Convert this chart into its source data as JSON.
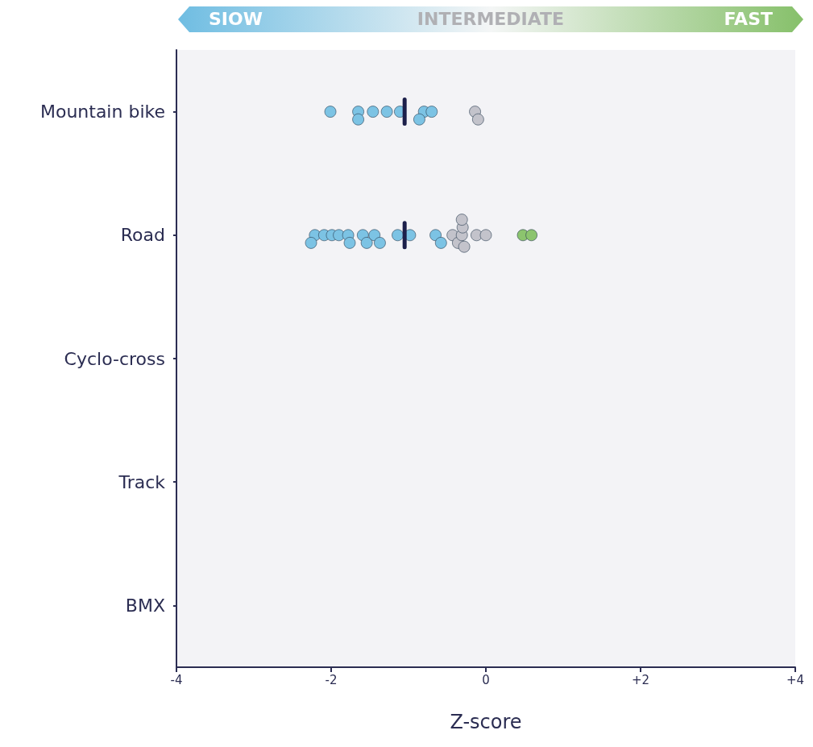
{
  "chart_data": {
    "type": "scatter",
    "orientation": "horizontal",
    "categories": [
      "Mountain bike",
      "Road",
      "Cyclo-cross",
      "Track",
      "BMX"
    ],
    "xlim": [
      -4,
      4
    ],
    "xticks": [
      -4,
      -2,
      0,
      {
        "value": 2,
        "label": "+2"
      },
      {
        "value": 4,
        "label": "+4"
      }
    ],
    "xlabel": "Z-score",
    "grid": false,
    "marker": "circle",
    "annotations": [
      "SIOW",
      "INTERMEDIATE",
      "FAST"
    ],
    "series": [
      {
        "color": "#7cc3e4",
        "x": [
          "Mountain bike",
          "Mountain bike",
          "Mountain bike",
          "Mountain bike",
          "Mountain bike",
          "Mountain bike",
          "Mountain bike",
          "Mountain bike",
          "Mountain bike",
          "Road",
          "Road",
          "Road",
          "Road",
          "Road",
          "Road",
          "Road",
          "Road",
          "Road",
          "Road",
          "Road",
          "Road",
          "Road",
          "Road",
          "Road"
        ],
        "values": [
          -2.01,
          -1.65,
          -1.65,
          -1.46,
          -1.28,
          -1.11,
          -0.8,
          -0.86,
          -0.7,
          -2.21,
          -2.26,
          -2.09,
          -1.99,
          -1.9,
          -1.78,
          -1.76,
          -1.59,
          -1.54,
          -1.44,
          -1.37,
          -1.14,
          -0.98,
          -0.65,
          -0.58
        ]
      },
      {
        "color": "#c3c3cb",
        "x": [
          "Mountain bike",
          "Mountain bike",
          "Road",
          "Road",
          "Road",
          "Road",
          "Road",
          "Road",
          "Road",
          "Road"
        ],
        "values": [
          -0.14,
          -0.1,
          -0.43,
          -0.36,
          -0.31,
          -0.3,
          -0.28,
          -0.31,
          -0.12,
          0.0
        ]
      },
      {
        "color": "#8cc46e",
        "x": [
          "Road",
          "Road"
        ],
        "values": [
          0.48,
          0.59
        ]
      },
      {
        "type": "box",
        "color": "#1c1f4a",
        "boxes": [
          {
            "low": -1.05,
            "q1": -1.05,
            "median": -1.05,
            "q3": -1.05,
            "high": -1.05
          },
          {
            "low": -1.05,
            "q1": -1.05,
            "median": -1.05,
            "q3": -1.05,
            "high": -1.05
          },
          null,
          null,
          null
        ]
      }
    ]
  }
}
